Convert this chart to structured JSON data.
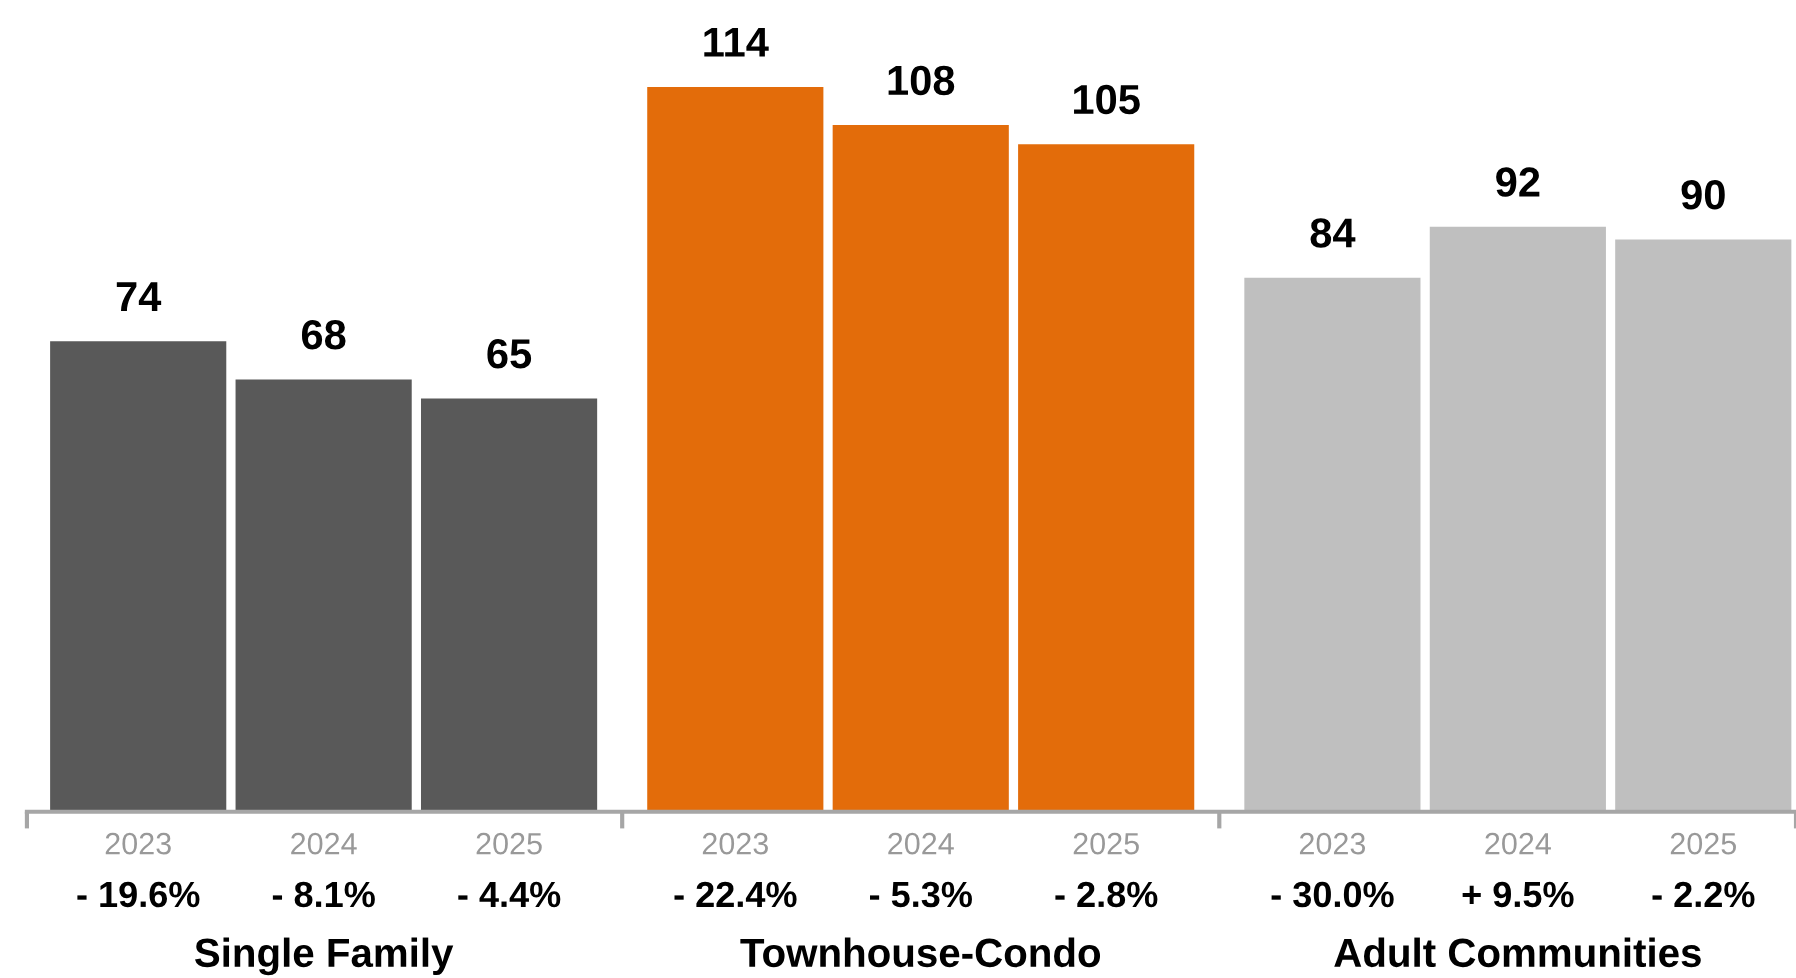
{
  "chart_data": {
    "type": "bar",
    "categories": [
      "2023",
      "2024",
      "2025",
      "2023",
      "2024",
      "2025",
      "2023",
      "2024",
      "2025"
    ],
    "values": [
      74,
      68,
      65,
      114,
      108,
      105,
      84,
      92,
      90
    ],
    "colors": [
      "#595959",
      "#595959",
      "#595959",
      "#e36c0a",
      "#e36c0a",
      "#e36c0a",
      "#bfbfbf",
      "#bfbfbf",
      "#bfbfbf"
    ],
    "data_labels": true,
    "annotations": [
      "- 19.6%",
      "- 8.1%",
      "- 4.4%",
      "- 22.4%",
      "- 5.3%",
      "- 2.8%",
      "- 30.0%",
      "+ 9.5%",
      "- 2.2%",
      "Single Family",
      "Townhouse-Condo",
      "Adult Communities"
    ],
    "grid": false,
    "legend": false
  }
}
